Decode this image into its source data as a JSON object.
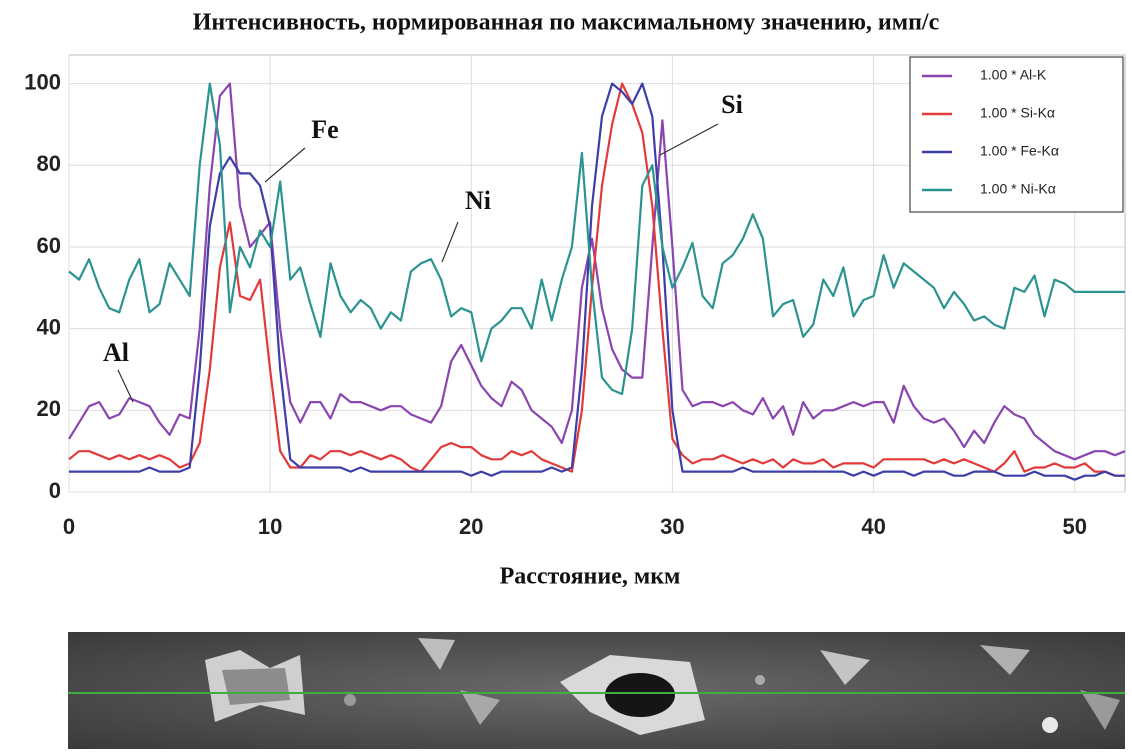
{
  "chart_data": {
    "type": "line",
    "title": "Интенсивность, нормированная по максимальному значению, имп/с",
    "x_label": "Расстояние, мкм",
    "x": [
      0,
      0.5,
      1,
      1.5,
      2,
      2.5,
      3,
      3.5,
      4,
      4.5,
      5,
      5.5,
      6,
      6.5,
      7,
      7.5,
      8,
      8.5,
      9,
      9.5,
      10,
      10.5,
      11,
      11.5,
      12,
      12.5,
      13,
      13.5,
      14,
      14.5,
      15,
      15.5,
      16,
      16.5,
      17,
      17.5,
      18,
      18.5,
      19,
      19.5,
      20,
      20.5,
      21,
      21.5,
      22,
      22.5,
      23,
      23.5,
      24,
      24.5,
      25,
      25.5,
      26,
      26.5,
      27,
      27.5,
      28,
      28.5,
      29,
      29.5,
      30,
      30.5,
      31,
      31.5,
      32,
      32.5,
      33,
      33.5,
      34,
      34.5,
      35,
      35.5,
      36,
      36.5,
      37,
      37.5,
      38,
      38.5,
      39,
      39.5,
      40,
      40.5,
      41,
      41.5,
      42,
      42.5,
      43,
      43.5,
      44,
      44.5,
      45,
      45.5,
      46,
      46.5,
      47,
      47.5,
      48,
      48.5,
      49,
      49.5,
      50,
      50.5,
      51,
      51.5,
      52,
      52.5
    ],
    "series": [
      {
        "name": "1.00 * Al-K",
        "color": "#8a45b0",
        "values": [
          13,
          17,
          21,
          22,
          18,
          19,
          23,
          22,
          21,
          17,
          14,
          19,
          18,
          40,
          75,
          97,
          100,
          70,
          60,
          63,
          66,
          40,
          22,
          17,
          22,
          22,
          18,
          24,
          22,
          22,
          21,
          20,
          21,
          21,
          19,
          18,
          17,
          21,
          32,
          36,
          31,
          26,
          23,
          21,
          27,
          25,
          20,
          18,
          16,
          12,
          20,
          50,
          62,
          45,
          35,
          30,
          28,
          28,
          60,
          91,
          60,
          25,
          21,
          22,
          22,
          21,
          22,
          20,
          19,
          23,
          18,
          21,
          14,
          22,
          18,
          20,
          20,
          21,
          22,
          21,
          22,
          22,
          17,
          26,
          21,
          18,
          17,
          18,
          15,
          11,
          15,
          12,
          17,
          21,
          19,
          18,
          14,
          12,
          10,
          9,
          8,
          9,
          10,
          10,
          9,
          10
        ]
      },
      {
        "name": "1.00 * Si-Kα",
        "color": "#e23a3a",
        "values": [
          8,
          10,
          10,
          9,
          8,
          9,
          8,
          9,
          8,
          9,
          8,
          6,
          7,
          12,
          30,
          55,
          66,
          48,
          47,
          52,
          30,
          10,
          6,
          6,
          9,
          8,
          10,
          10,
          9,
          10,
          9,
          8,
          9,
          8,
          6,
          5,
          8,
          11,
          12,
          11,
          11,
          9,
          8,
          8,
          10,
          9,
          10,
          8,
          7,
          6,
          5,
          20,
          50,
          75,
          90,
          100,
          95,
          88,
          70,
          40,
          13,
          9,
          7,
          8,
          8,
          9,
          8,
          7,
          8,
          7,
          8,
          6,
          8,
          7,
          7,
          8,
          6,
          7,
          7,
          7,
          6,
          8,
          8,
          8,
          8,
          8,
          7,
          8,
          7,
          8,
          7,
          6,
          5,
          7,
          10,
          5,
          6,
          6,
          7,
          6,
          6,
          7,
          5,
          5,
          4,
          4
        ]
      },
      {
        "name": "1.00 * Fe-Kα",
        "color": "#3d3ea8",
        "values": [
          5,
          5,
          5,
          5,
          5,
          5,
          5,
          5,
          6,
          5,
          5,
          5,
          6,
          30,
          65,
          78,
          82,
          78,
          78,
          75,
          65,
          30,
          8,
          6,
          6,
          6,
          6,
          6,
          5,
          6,
          5,
          5,
          5,
          5,
          5,
          5,
          5,
          5,
          5,
          5,
          4,
          5,
          4,
          5,
          5,
          5,
          5,
          5,
          6,
          5,
          6,
          30,
          70,
          92,
          100,
          98,
          95,
          100,
          92,
          60,
          20,
          5,
          5,
          5,
          5,
          5,
          5,
          6,
          5,
          5,
          5,
          5,
          5,
          5,
          5,
          5,
          5,
          5,
          4,
          5,
          4,
          5,
          5,
          5,
          4,
          5,
          5,
          5,
          4,
          4,
          5,
          5,
          5,
          4,
          4,
          4,
          5,
          4,
          4,
          4,
          3,
          4,
          4,
          5,
          4,
          4
        ]
      },
      {
        "name": "1.00 * Ni-Kα",
        "color": "#2b9490",
        "values": [
          54,
          52,
          57,
          50,
          45,
          44,
          52,
          57,
          44,
          46,
          56,
          52,
          48,
          80,
          100,
          85,
          44,
          60,
          55,
          64,
          60,
          76,
          52,
          55,
          46,
          38,
          56,
          48,
          44,
          47,
          45,
          40,
          44,
          42,
          54,
          56,
          57,
          52,
          43,
          45,
          44,
          32,
          40,
          42,
          45,
          45,
          40,
          52,
          42,
          52,
          60,
          83,
          50,
          28,
          25,
          24,
          40,
          75,
          80,
          60,
          50,
          55,
          61,
          48,
          45,
          56,
          58,
          62,
          68,
          62,
          43,
          46,
          47,
          38,
          41,
          52,
          48,
          55,
          43,
          47,
          48,
          58,
          50,
          56,
          54,
          52,
          50,
          45,
          49,
          46,
          42,
          43,
          41,
          40,
          50,
          49,
          53,
          43,
          52,
          51,
          49,
          49,
          49,
          49,
          49,
          49
        ]
      }
    ],
    "annotations": [
      "Al",
      "Fe",
      "Ni",
      "Si"
    ],
    "xlim": [
      0,
      52.5
    ],
    "xticks": [
      0,
      10,
      20,
      30,
      40,
      50
    ],
    "ylim": [
      0,
      107
    ],
    "yticks": [
      0,
      20,
      40,
      60,
      80,
      100
    ],
    "grid": true,
    "legend": "top-right"
  }
}
